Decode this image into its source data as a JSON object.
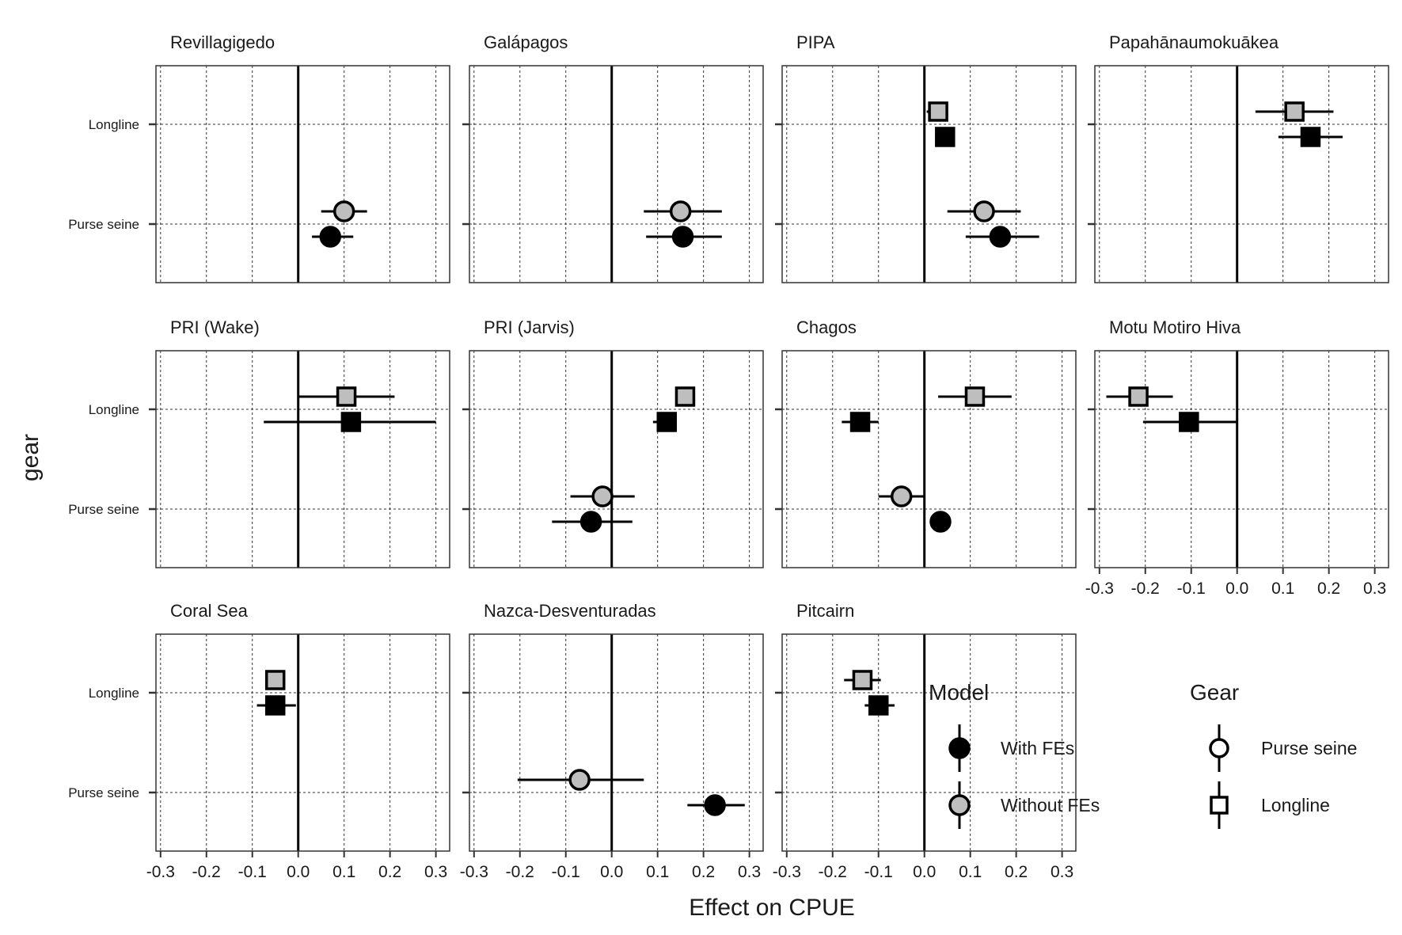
{
  "chart_data": {
    "type": "scatter",
    "subtype": "faceted point-range (coefficient plot)",
    "xlabel": "Effect on CPUE",
    "ylabel": "gear",
    "xlim": [
      -0.31,
      0.33
    ],
    "x_ticks": [
      -0.3,
      -0.2,
      -0.1,
      0.0,
      0.1,
      0.2,
      0.3
    ],
    "x_tick_labels": [
      "-0.3",
      "-0.2",
      "-0.1",
      "0.0",
      "0.1",
      "0.2",
      "0.3"
    ],
    "y_categories": [
      "Longline",
      "Purse seine"
    ],
    "reference_line_x": 0,
    "grid": true,
    "colors": {
      "with_fes": "#000000",
      "without_fes": "#bebebe",
      "outline": "#000000"
    },
    "legend": {
      "model_title": "Model",
      "model_entries": [
        {
          "label": "With FEs",
          "fill": "#000000"
        },
        {
          "label": "Without FEs",
          "fill": "#bebebe"
        }
      ],
      "gear_title": "Gear",
      "gear_entries": [
        {
          "label": "Purse seine",
          "shape": "circle"
        },
        {
          "label": "Longline",
          "shape": "square"
        }
      ],
      "placement": "bottom-right"
    },
    "facets": [
      {
        "name": "Revillagigedo",
        "points": [
          {
            "gear": "Purse seine",
            "model": "Without FEs",
            "est": 0.1,
            "lo": 0.05,
            "hi": 0.15
          },
          {
            "gear": "Purse seine",
            "model": "With FEs",
            "est": 0.07,
            "lo": 0.03,
            "hi": 0.12
          }
        ]
      },
      {
        "name": "Galápagos",
        "points": [
          {
            "gear": "Purse seine",
            "model": "Without FEs",
            "est": 0.15,
            "lo": 0.07,
            "hi": 0.24
          },
          {
            "gear": "Purse seine",
            "model": "With FEs",
            "est": 0.155,
            "lo": 0.075,
            "hi": 0.24
          }
        ]
      },
      {
        "name": "PIPA",
        "points": [
          {
            "gear": "Longline",
            "model": "Without FEs",
            "est": 0.03,
            "lo": 0.005,
            "hi": 0.05
          },
          {
            "gear": "Longline",
            "model": "With FEs",
            "est": 0.045,
            "lo": 0.035,
            "hi": 0.055
          },
          {
            "gear": "Purse seine",
            "model": "Without FEs",
            "est": 0.13,
            "lo": 0.05,
            "hi": 0.21
          },
          {
            "gear": "Purse seine",
            "model": "With FEs",
            "est": 0.165,
            "lo": 0.09,
            "hi": 0.25
          }
        ]
      },
      {
        "name": "Papahānaumokuākea",
        "points": [
          {
            "gear": "Longline",
            "model": "Without FEs",
            "est": 0.125,
            "lo": 0.04,
            "hi": 0.21
          },
          {
            "gear": "Longline",
            "model": "With FEs",
            "est": 0.16,
            "lo": 0.09,
            "hi": 0.23
          }
        ]
      },
      {
        "name": "PRI (Wake)",
        "points": [
          {
            "gear": "Longline",
            "model": "Without FEs",
            "est": 0.105,
            "lo": 0.0,
            "hi": 0.21
          },
          {
            "gear": "Longline",
            "model": "With FEs",
            "est": 0.115,
            "lo": -0.075,
            "hi": 0.3
          }
        ]
      },
      {
        "name": "PRI (Jarvis)",
        "points": [
          {
            "gear": "Longline",
            "model": "Without FEs",
            "est": 0.16,
            "lo": 0.14,
            "hi": 0.175
          },
          {
            "gear": "Longline",
            "model": "With FEs",
            "est": 0.12,
            "lo": 0.09,
            "hi": 0.14
          },
          {
            "gear": "Purse seine",
            "model": "Without FEs",
            "est": -0.02,
            "lo": -0.09,
            "hi": 0.05
          },
          {
            "gear": "Purse seine",
            "model": "With FEs",
            "est": -0.045,
            "lo": -0.13,
            "hi": 0.045
          }
        ]
      },
      {
        "name": "Chagos",
        "points": [
          {
            "gear": "Longline",
            "model": "Without FEs",
            "est": 0.11,
            "lo": 0.03,
            "hi": 0.19
          },
          {
            "gear": "Longline",
            "model": "With FEs",
            "est": -0.14,
            "lo": -0.18,
            "hi": -0.1
          },
          {
            "gear": "Purse seine",
            "model": "Without FEs",
            "est": -0.05,
            "lo": -0.1,
            "hi": 0.0
          },
          {
            "gear": "Purse seine",
            "model": "With FEs",
            "est": 0.035,
            "lo": 0.03,
            "hi": 0.04
          }
        ]
      },
      {
        "name": "Motu Motiro Hiva",
        "points": [
          {
            "gear": "Longline",
            "model": "Without FEs",
            "est": -0.215,
            "lo": -0.285,
            "hi": -0.14
          },
          {
            "gear": "Longline",
            "model": "With FEs",
            "est": -0.105,
            "lo": -0.205,
            "hi": 0.0
          }
        ]
      },
      {
        "name": "Coral Sea",
        "points": [
          {
            "gear": "Longline",
            "model": "Without FEs",
            "est": -0.05,
            "lo": -0.065,
            "hi": -0.035
          },
          {
            "gear": "Longline",
            "model": "With FEs",
            "est": -0.05,
            "lo": -0.09,
            "hi": -0.005
          }
        ]
      },
      {
        "name": "Nazca-Desventuradas",
        "points": [
          {
            "gear": "Purse seine",
            "model": "Without FEs",
            "est": -0.07,
            "lo": -0.205,
            "hi": 0.07
          },
          {
            "gear": "Purse seine",
            "model": "With FEs",
            "est": 0.225,
            "lo": 0.165,
            "hi": 0.29
          }
        ]
      },
      {
        "name": "Pitcairn",
        "points": [
          {
            "gear": "Longline",
            "model": "Without FEs",
            "est": -0.135,
            "lo": -0.175,
            "hi": -0.095
          },
          {
            "gear": "Longline",
            "model": "With FEs",
            "est": -0.1,
            "lo": -0.13,
            "hi": -0.065
          }
        ]
      }
    ]
  }
}
